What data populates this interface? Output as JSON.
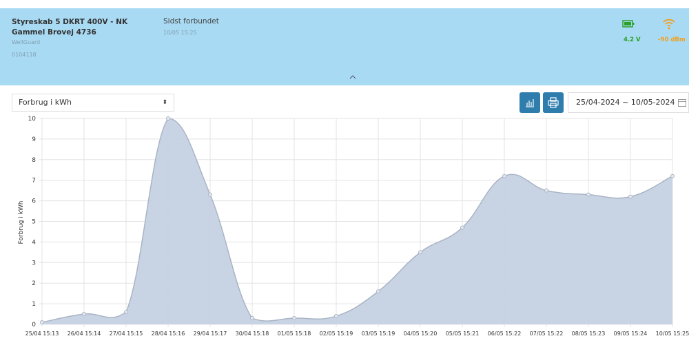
{
  "header": {
    "title": "Styreskab 5 DKRT 400V - NK Gammel Brovej 4736",
    "brand": "WellGuard",
    "id": "0104118",
    "status_label": "Sidst forbundet",
    "status_time": "10/05 15:25",
    "battery": "4.2 V",
    "signal": "-90 dBm"
  },
  "controls": {
    "metric": "Forbrug i kWh",
    "date_range": "25/04-2024 ~ 10/05-2024"
  },
  "chart_data": {
    "type": "area",
    "y_label": "Forbrug i kWh",
    "categories": [
      "25/04 15:13",
      "26/04 15:14",
      "27/04 15:15",
      "28/04 15:16",
      "29/04 15:17",
      "30/04 15:18",
      "01/05 15:18",
      "02/05 15:19",
      "03/05 15:19",
      "04/05 15:20",
      "05/05 15:21",
      "06/05 15:22",
      "07/05 15:22",
      "08/05 15:23",
      "09/05 15:24",
      "10/05 15:25"
    ],
    "values": [
      0.1,
      0.5,
      0.6,
      10,
      6.3,
      0.3,
      0.3,
      0.4,
      1.6,
      3.5,
      4.7,
      7.2,
      6.5,
      6.3,
      6.2,
      7.2
    ],
    "color": "#c5d1e3",
    "line_color": "#a9b4c4",
    "ylim": [
      0,
      10
    ],
    "yticks": [
      0,
      1,
      2,
      3,
      4,
      5,
      6,
      7,
      8,
      9,
      10
    ],
    "grid": true
  }
}
